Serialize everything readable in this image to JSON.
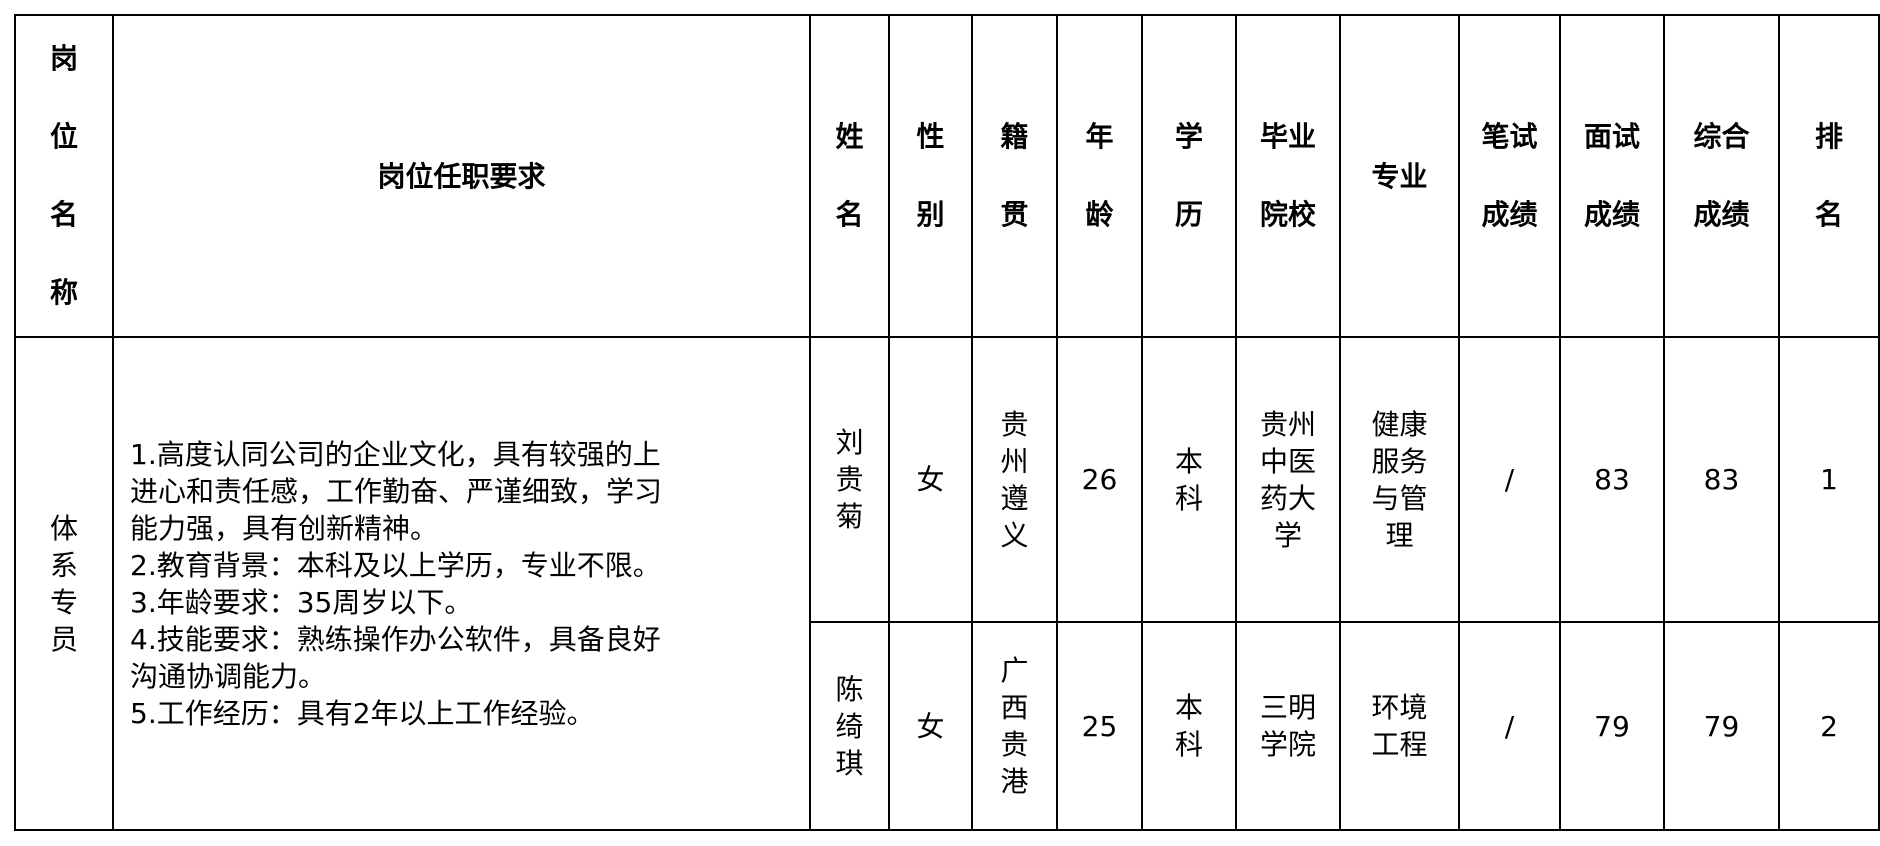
{
  "headers": {
    "position": "岗位名称",
    "requirements": "岗位任职要求",
    "name": "姓名",
    "gender": "性别",
    "origin": "籍贯",
    "age": "年龄",
    "education": "学历",
    "school": "毕业院校",
    "major": "专业",
    "written": "笔试成绩",
    "interview": "面试成绩",
    "total": "综合成绩",
    "rank": "排名"
  },
  "position": "体系专员",
  "requirements": [
    "1.高度认同公司的企业文化，具有较强的上",
    "进心和责任感，工作勤奋、严谨细致，学习",
    "能力强，具有创新精神。",
    "2.教育背景：本科及以上学历，专业不限。",
    "3.年龄要求：35周岁以下。",
    "4.技能要求：熟练操作办公软件，具备良好",
    "沟通协调能力。",
    "5.工作经历：具有2年以上工作经验。"
  ],
  "rows": [
    {
      "name": "刘贵菊",
      "gender": "女",
      "origin": "贵州遵义",
      "age": "26",
      "education": "本科",
      "school": "贵州中医药大学",
      "major": "健康服务与管理",
      "written": "/",
      "interview": "83",
      "total": "83",
      "rank": "1"
    },
    {
      "name": "陈绮琪",
      "gender": "女",
      "origin": "广西贵港",
      "age": "25",
      "education": "本科",
      "school": "三明学院",
      "major": "环境工程",
      "written": "/",
      "interview": "79",
      "total": "79",
      "rank": "2"
    }
  ]
}
